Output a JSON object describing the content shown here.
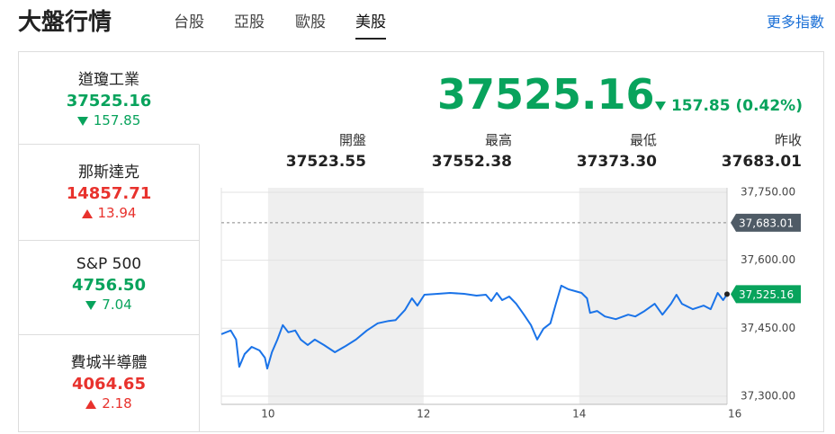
{
  "header": {
    "title": "大盤行情",
    "tabs": [
      "台股",
      "亞股",
      "歐股",
      "美股"
    ],
    "active_tab": 3,
    "more": "更多指數"
  },
  "indices": [
    {
      "name": "道瓊工業",
      "price": "37525.16",
      "change": "157.85",
      "direction": "down"
    },
    {
      "name": "那斯達克",
      "price": "14857.71",
      "change": "13.94",
      "direction": "up"
    },
    {
      "name": "S&P 500",
      "price": "4756.50",
      "change": "7.04",
      "direction": "down"
    },
    {
      "name": "費城半導體",
      "price": "4064.65",
      "change": "2.18",
      "direction": "up"
    }
  ],
  "quote": {
    "price": "37525.16",
    "change": "157.85 (0.42%)",
    "direction": "down",
    "stats": [
      {
        "label": "開盤",
        "value": "37523.55"
      },
      {
        "label": "最高",
        "value": "37552.38"
      },
      {
        "label": "最低",
        "value": "37373.30"
      },
      {
        "label": "昨收",
        "value": "37683.01"
      }
    ]
  },
  "chart_data": {
    "type": "line",
    "x": [
      9.4,
      9.52,
      9.59,
      9.63,
      9.7,
      9.79,
      9.89,
      9.96,
      9.99,
      10.05,
      10.12,
      10.19,
      10.26,
      10.35,
      10.42,
      10.51,
      10.6,
      10.72,
      10.86,
      11.0,
      11.13,
      11.27,
      11.41,
      11.55,
      11.64,
      11.76,
      11.85,
      11.92,
      12.01,
      12.18,
      12.34,
      12.52,
      12.68,
      12.8,
      12.87,
      12.94,
      13.01,
      13.1,
      13.19,
      13.29,
      13.38,
      13.46,
      13.54,
      13.63,
      13.7,
      13.77,
      13.86,
      14.03,
      14.1,
      14.14,
      14.23,
      14.33,
      14.47,
      14.63,
      14.72,
      14.84,
      14.97,
      15.07,
      15.18,
      15.25,
      15.32,
      15.46,
      15.6,
      15.69,
      15.78,
      15.85,
      15.9
    ],
    "series": [
      {
        "color": "#1a73e8",
        "values": [
          37437,
          37445,
          37425,
          37365,
          37393,
          37409,
          37401,
          37385,
          37361,
          37397,
          37425,
          37457,
          37441,
          37445,
          37425,
          37413,
          37425,
          37413,
          37397,
          37411,
          37425,
          37445,
          37461,
          37466,
          37468,
          37490,
          37516,
          37500,
          37524,
          37526,
          37528,
          37526,
          37522,
          37524,
          37510,
          37528,
          37512,
          37520,
          37504,
          37480,
          37457,
          37425,
          37449,
          37461,
          37504,
          37544,
          37536,
          37528,
          37516,
          37484,
          37488,
          37476,
          37470,
          37480,
          37476,
          37488,
          37504,
          37480,
          37504,
          37524,
          37504,
          37492,
          37500,
          37492,
          37528,
          37512,
          37525.16
        ]
      }
    ],
    "xlim": [
      9.4,
      15.9
    ],
    "xticks": [
      10,
      12,
      14,
      16
    ],
    "ylim": [
      37282,
      37760
    ],
    "yticks": [
      {
        "value": 37300,
        "label": "37,300.00"
      },
      {
        "value": 37450,
        "label": "37,450.00"
      },
      {
        "value": 37600,
        "label": "37,600.00"
      },
      {
        "value": 37750,
        "label": "37,750.00"
      }
    ],
    "reference": {
      "value": 37683.01,
      "label": "37,683.01",
      "color": "#4f5b66"
    },
    "current": {
      "value": 37525.16,
      "label": "37,525.16",
      "color": "#08a35c"
    },
    "grid": true
  }
}
